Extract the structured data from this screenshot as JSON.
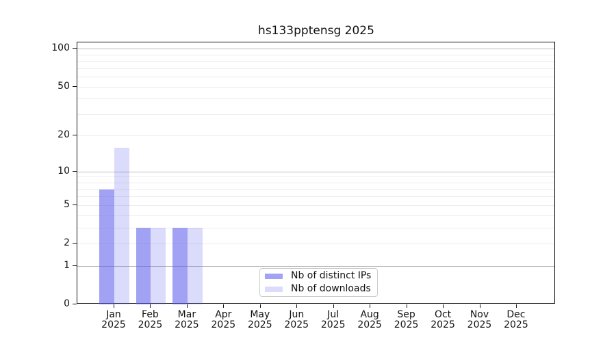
{
  "chart_data": {
    "type": "bar",
    "title": "hs133pptensg 2025",
    "categories": [
      "Jan 2025",
      "Feb 2025",
      "Mar 2025",
      "Apr 2025",
      "May 2025",
      "Jun 2025",
      "Jul 2025",
      "Aug 2025",
      "Sep 2025",
      "Oct 2025",
      "Nov 2025",
      "Dec 2025"
    ],
    "series": [
      {
        "name": "Nb of distinct IPs",
        "values": [
          7,
          3,
          3,
          0,
          0,
          0,
          0,
          0,
          0,
          0,
          0,
          0
        ],
        "color": "#a3a3f4",
        "fill": "rgba(90,90,235,0.56)"
      },
      {
        "name": "Nb of downloads",
        "values": [
          16,
          3,
          3,
          0,
          0,
          0,
          0,
          0,
          0,
          0,
          0,
          0
        ],
        "color": "#dbdbfb",
        "fill": "rgba(90,90,235,0.22)"
      }
    ],
    "yscale": "log1p",
    "ylim": [
      0,
      112
    ],
    "ytick_labels": [
      "100",
      "50",
      "20",
      "10",
      "5",
      "2",
      "1",
      "0"
    ],
    "minor_grid_values": [
      2,
      3,
      4,
      5,
      6,
      7,
      8,
      9,
      20,
      30,
      40,
      50,
      60,
      70,
      80,
      90
    ],
    "major_grid_values": [
      1,
      10,
      100
    ],
    "grid": true,
    "legend_position": "lower-center"
  },
  "colors": {
    "background": "#ffffff",
    "spine": "#111111",
    "text": "#111111",
    "major_grid": "#b9b9b9",
    "minor_grid": "#ececec",
    "legend_border": "#cccccc"
  }
}
